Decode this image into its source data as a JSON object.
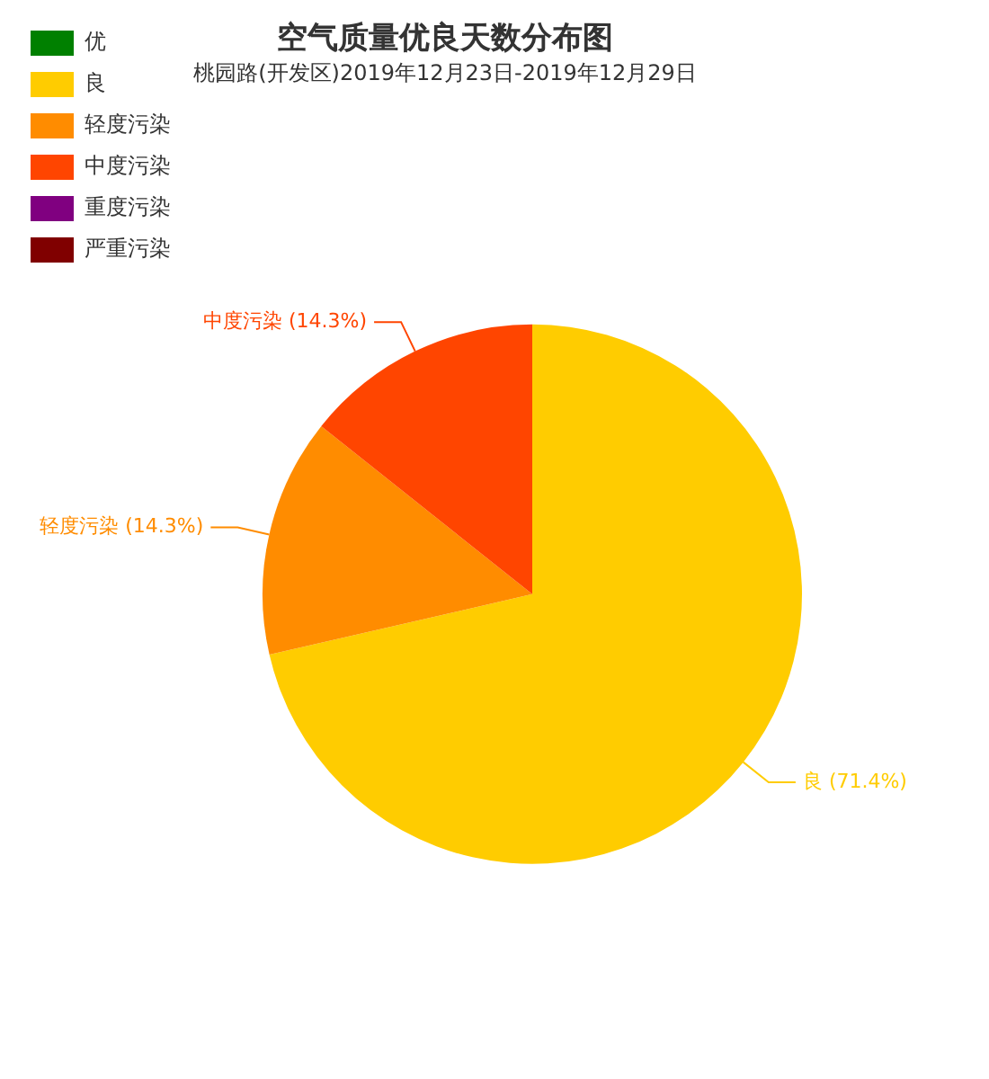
{
  "chart_data": {
    "type": "pie",
    "title": "空气质量优良天数分布图",
    "subtitle": "桃园路(开发区)2019年12月23日-2019年12月29日",
    "categories": [
      "优",
      "良",
      "轻度污染",
      "中度污染",
      "重度污染",
      "严重污染"
    ],
    "values": [
      0,
      71.4,
      14.3,
      14.3,
      0,
      0
    ],
    "colors": [
      "#008000",
      "#ffcc00",
      "#ff8c00",
      "#ff4500",
      "#800080",
      "#800000"
    ],
    "value_labels": [
      null,
      "(71.4%)",
      "(14.3%)",
      "(14.3%)",
      null,
      null
    ],
    "legend": "top left"
  }
}
